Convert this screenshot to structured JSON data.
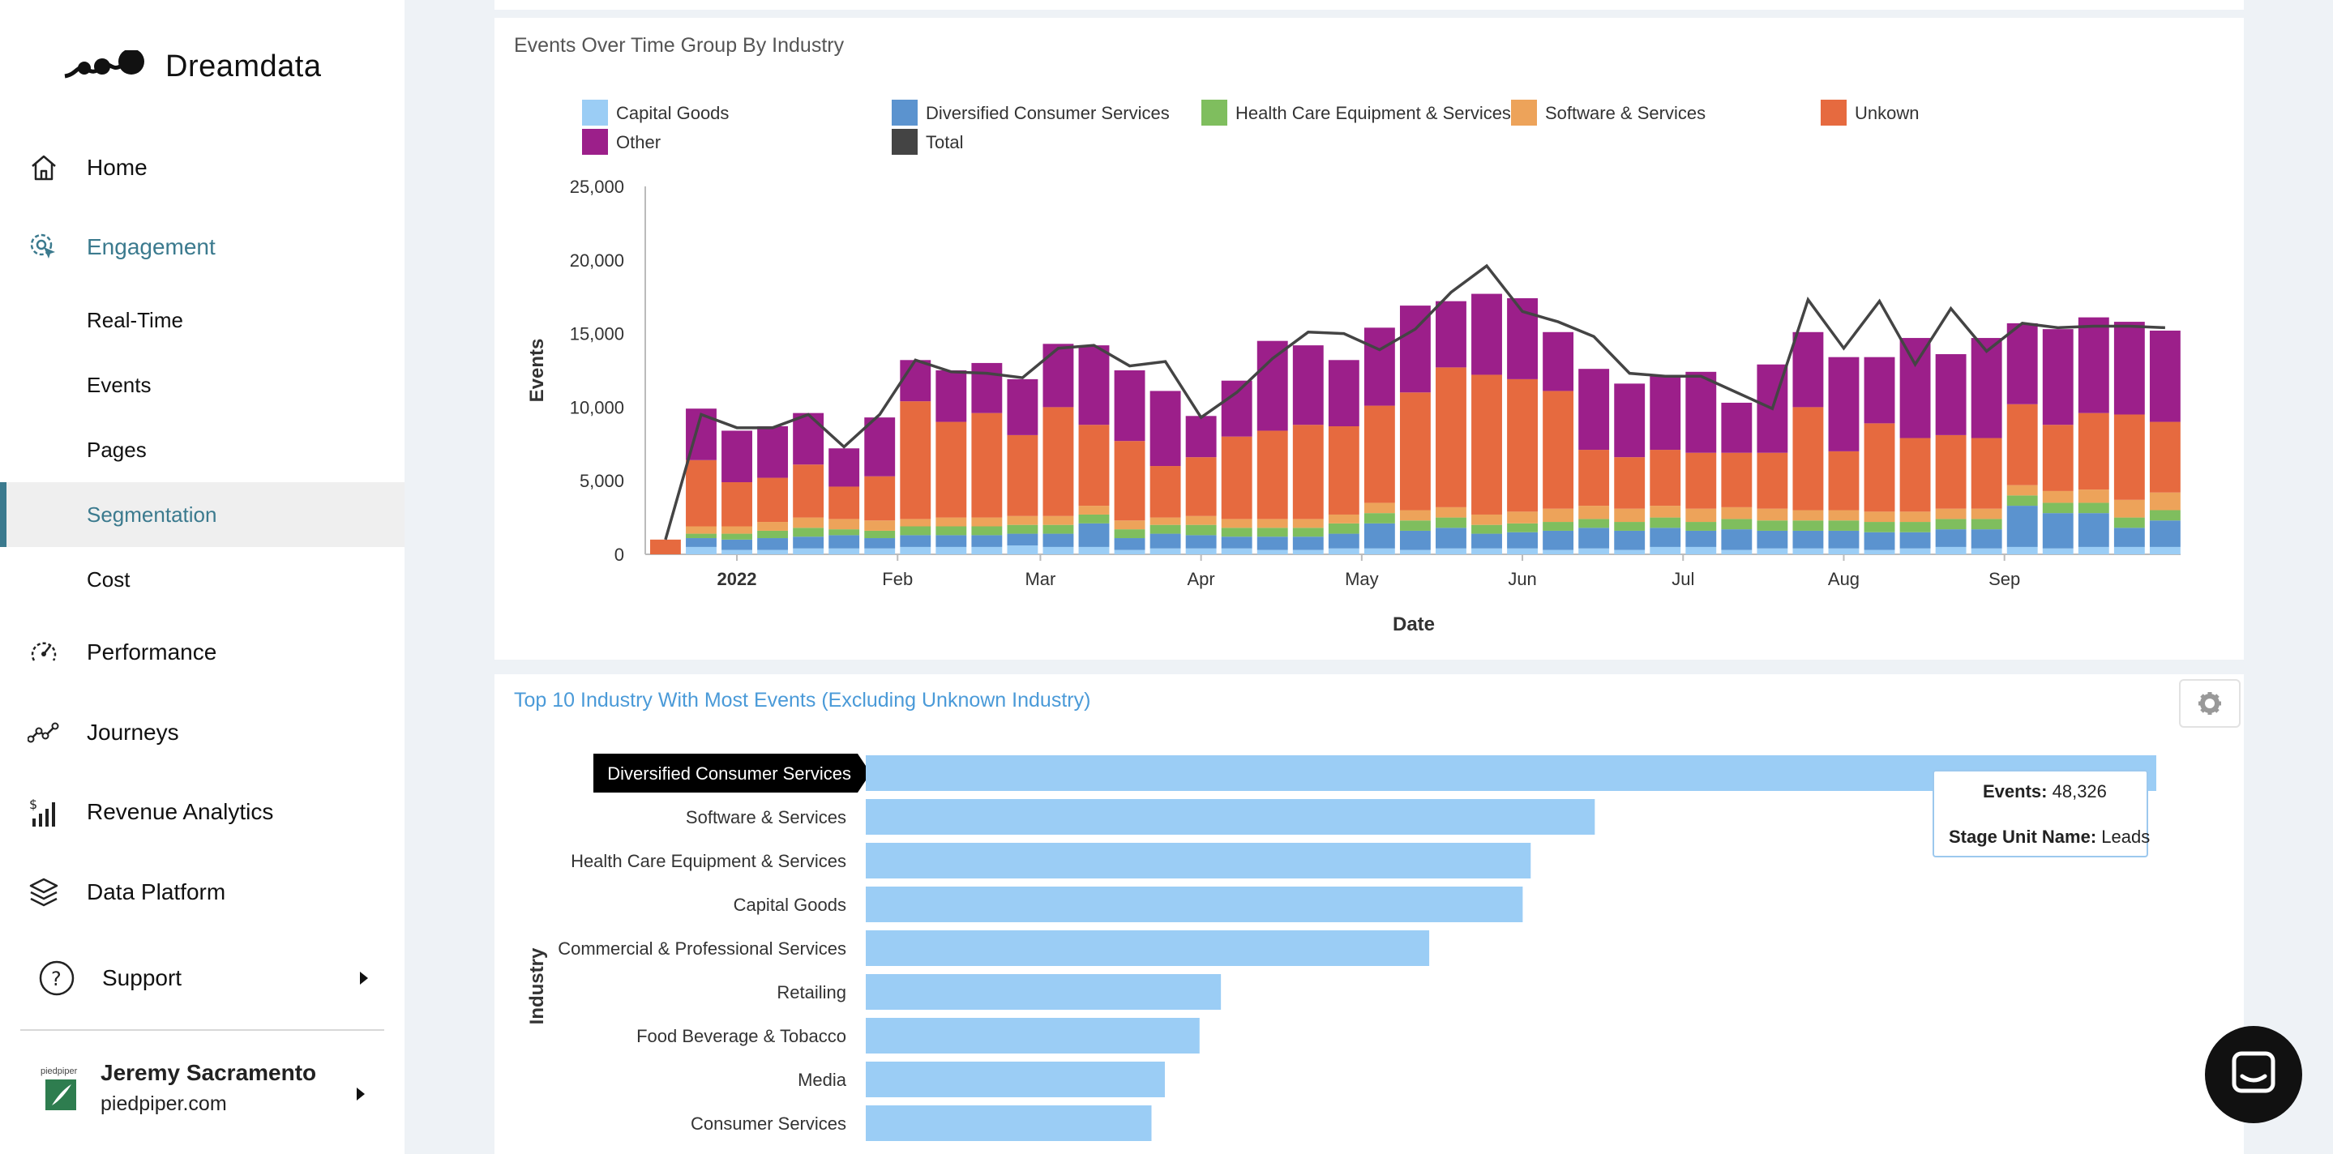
{
  "app": {
    "name": "Dreamdata"
  },
  "sidebar": {
    "home": "Home",
    "engagement": "Engagement",
    "sub": [
      "Real-Time",
      "Events",
      "Pages",
      "Segmentation",
      "Cost"
    ],
    "performance": "Performance",
    "journeys": "Journeys",
    "revenue": "Revenue Analytics",
    "platform": "Data Platform",
    "support": "Support",
    "user": {
      "name": "Jeremy Sacramento",
      "org": "piedpiper.com",
      "logo_text": "piedpiper"
    }
  },
  "chart1": {
    "title": "Events Over Time Group By Industry"
  },
  "chart2": {
    "title": "Top 10 Industry With Most Events (Excluding Unknown Industry)",
    "tooltip": {
      "events_label": "Events:",
      "events_value": "48,326",
      "stage_label": "Stage Unit Name:",
      "stage_value": "Leads"
    }
  },
  "colors": {
    "accent": "#3b7a8e",
    "capital": "#9bcdf5",
    "diversified": "#5b93cf",
    "health": "#7fbe5e",
    "software": "#eda35a",
    "unknown": "#e66a3f",
    "other": "#9c1f8a",
    "total": "#444444"
  },
  "chart_data": [
    {
      "type": "bar",
      "title": "Events Over Time Group By Industry",
      "xlabel": "Date",
      "ylabel": "Events",
      "ylim": [
        0,
        25000
      ],
      "yticks": [
        "25,000",
        "20,000",
        "15,000",
        "10,000",
        "5,000",
        "0"
      ],
      "xticks": [
        "2022",
        "Feb",
        "Mar",
        "Apr",
        "May",
        "Jun",
        "Jul",
        "Aug",
        "Sep"
      ],
      "legend": [
        "Capital Goods",
        "Diversified Consumer Services",
        "Health Care Equipment & Services",
        "Software & Services",
        "Unkown",
        "Other",
        "Total"
      ],
      "series": [
        {
          "name": "Capital Goods",
          "values": [
            0,
            500,
            300,
            300,
            400,
            400,
            400,
            500,
            500,
            500,
            600,
            500,
            500,
            300,
            400,
            400,
            400,
            300,
            300,
            400,
            400,
            300,
            400,
            400,
            400,
            300,
            400,
            300,
            500,
            500,
            300,
            400,
            400,
            400,
            300,
            400,
            500,
            400,
            500,
            400,
            500,
            500,
            500
          ]
        },
        {
          "name": "Diversified Consumer Services",
          "values": [
            0,
            600,
            700,
            800,
            800,
            900,
            700,
            800,
            800,
            800,
            800,
            900,
            1600,
            800,
            1000,
            900,
            800,
            900,
            900,
            1000,
            1700,
            1300,
            1400,
            1000,
            1100,
            1300,
            1400,
            1300,
            1300,
            1100,
            1400,
            1200,
            1200,
            1200,
            1200,
            1100,
            1200,
            1300,
            2800,
            2400,
            2300,
            1300,
            1800
          ]
        },
        {
          "name": "Health Care Equipment & Services",
          "values": [
            0,
            300,
            400,
            500,
            600,
            400,
            500,
            600,
            600,
            600,
            600,
            600,
            600,
            600,
            600,
            700,
            600,
            600,
            600,
            700,
            700,
            700,
            700,
            600,
            600,
            600,
            600,
            600,
            700,
            600,
            700,
            700,
            700,
            700,
            700,
            700,
            700,
            700,
            700,
            700,
            700,
            700,
            700
          ]
        },
        {
          "name": "Software & Services",
          "values": [
            0,
            500,
            500,
            600,
            700,
            700,
            700,
            500,
            600,
            600,
            600,
            600,
            600,
            600,
            500,
            600,
            600,
            600,
            600,
            600,
            700,
            700,
            700,
            700,
            800,
            900,
            900,
            900,
            800,
            900,
            800,
            800,
            700,
            700,
            700,
            700,
            700,
            700,
            700,
            800,
            900,
            1200,
            1200
          ]
        },
        {
          "name": "Unkown",
          "values": [
            1000,
            4500,
            3000,
            3000,
            3600,
            2200,
            3000,
            8000,
            6500,
            7100,
            5500,
            7400,
            5500,
            5400,
            3500,
            4000,
            5600,
            6000,
            6400,
            6000,
            6600,
            8000,
            9500,
            9500,
            9000,
            8000,
            3800,
            3500,
            3800,
            3800,
            3700,
            3800,
            7000,
            4000,
            6000,
            5000,
            5000,
            4800,
            5500,
            4500,
            5200,
            5800,
            4800
          ]
        },
        {
          "name": "Other",
          "values": [
            0,
            3500,
            3500,
            3500,
            3500,
            2600,
            4000,
            2800,
            3500,
            3400,
            3800,
            4300,
            5400,
            4800,
            5100,
            2800,
            3800,
            6100,
            5400,
            4500,
            5300,
            5900,
            4500,
            5500,
            5500,
            4000,
            5500,
            5000,
            5000,
            5500,
            3400,
            6000,
            5100,
            6400,
            4500,
            6800,
            5500,
            6800,
            5500,
            6500,
            6500,
            6300,
            6200
          ]
        },
        {
          "name": "Total",
          "type": "line",
          "values": [
            1000,
            9500,
            8600,
            8600,
            9500,
            7300,
            9500,
            13200,
            12400,
            12300,
            12000,
            14000,
            14200,
            12800,
            13100,
            9300,
            11000,
            13300,
            15100,
            15000,
            13900,
            15300,
            17800,
            19600,
            16500,
            15800,
            14800,
            12300,
            12100,
            12100,
            11000,
            9900,
            17300,
            14000,
            17200,
            12900,
            16700,
            13800,
            15700,
            15400,
            15500,
            15500,
            15400
          ]
        }
      ]
    },
    {
      "type": "bar",
      "orientation": "horizontal",
      "title": "Top 10 Industry With Most Events (Excluding Unknown Industry)",
      "ylabel": "Industry",
      "categories": [
        "Diversified Consumer Services",
        "Software & Services",
        "Health Care Equipment & Services",
        "Capital Goods",
        "Commercial & Professional Services",
        "Retailing",
        "Food Beverage & Tobacco",
        "Media",
        "Consumer Services"
      ],
      "values": [
        48326,
        27300,
        24900,
        24600,
        21100,
        13300,
        12500,
        11200,
        10700
      ]
    }
  ]
}
